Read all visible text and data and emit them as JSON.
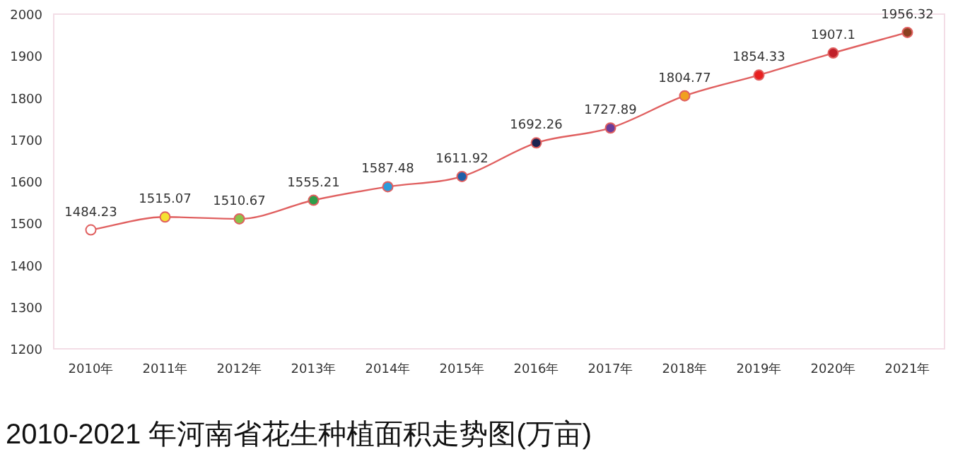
{
  "chart_data": {
    "type": "line",
    "title": "2010-2021 年河南省花生种植面积走势图(万亩)",
    "categories": [
      "2010年",
      "2011年",
      "2012年",
      "2013年",
      "2014年",
      "2015年",
      "2016年",
      "2017年",
      "2018年",
      "2019年",
      "2020年",
      "2021年"
    ],
    "series": [
      {
        "color": "#e06060",
        "values": [
          1484.23,
          1515.07,
          1510.67,
          1555.21,
          1587.48,
          1611.92,
          1692.26,
          1727.89,
          1804.77,
          1854.33,
          1907.1,
          1956.32
        ],
        "colors": [
          "#ffffff",
          "#f5e232",
          "#8bc34a",
          "#2e9e4a",
          "#2d9cdb",
          "#1f5fa8",
          "#1c2350",
          "#6a3d9a",
          "#f0a020",
          "#e82020",
          "#c0202a",
          "#8b4020"
        ]
      }
    ],
    "ylim": [
      1200,
      2000
    ],
    "yticks": [
      1200,
      1300,
      1400,
      1500,
      1600,
      1700,
      1800,
      1900,
      2000
    ],
    "marker": "circle",
    "data_labels": true,
    "grid": false
  }
}
